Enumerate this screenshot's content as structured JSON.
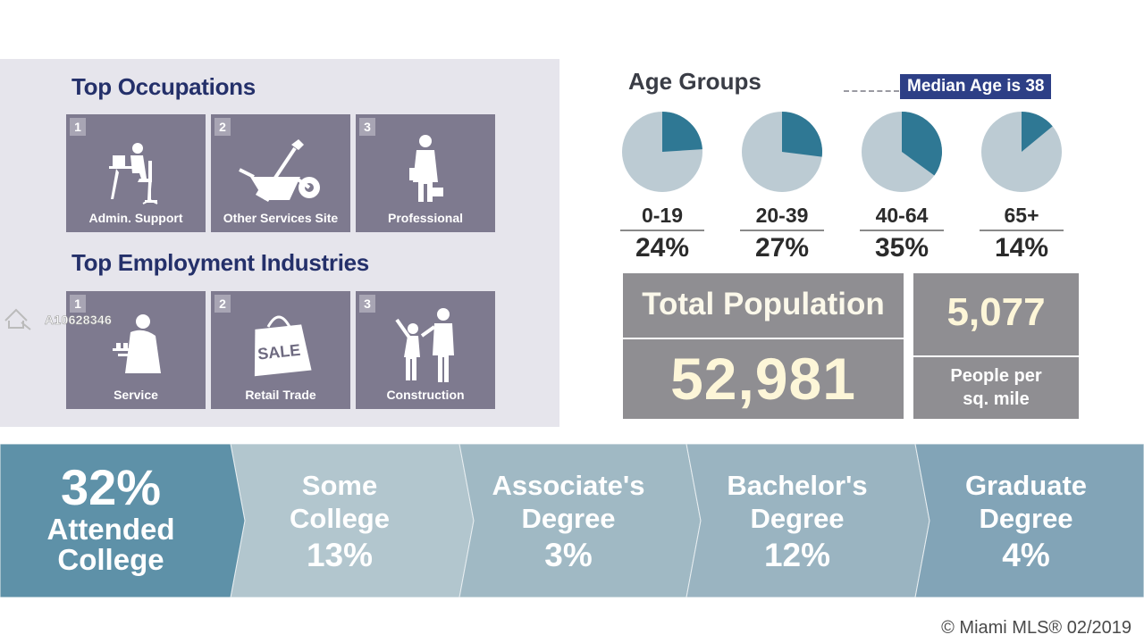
{
  "occupations": {
    "title": "Top Occupations",
    "items": [
      {
        "rank": "1",
        "label": "Admin. Support",
        "icon": "office-worker-icon"
      },
      {
        "rank": "2",
        "label": "Other Services Site",
        "icon": "wheelbarrow-shovel-icon"
      },
      {
        "rank": "3",
        "label": "Professional",
        "icon": "professional-person-icon"
      }
    ]
  },
  "industries": {
    "title": "Top Employment Industries",
    "items": [
      {
        "rank": "1",
        "label": "Service",
        "icon": "waiter-icon"
      },
      {
        "rank": "2",
        "label": "Retail Trade",
        "icon": "sale-bag-icon",
        "bag_text": "SALE"
      },
      {
        "rank": "3",
        "label": "Construction",
        "icon": "construction-workers-icon"
      }
    ]
  },
  "watermark": {
    "listing_id": "A10628346"
  },
  "chart_data": [
    {
      "type": "pie",
      "title": "Age Groups",
      "annotation": "Median Age is 38",
      "categories": [
        "0-19",
        "20-39",
        "40-64",
        "65+"
      ],
      "labels": [
        "24%",
        "27%",
        "35%",
        "14%"
      ],
      "values": [
        24,
        27,
        35,
        14
      ],
      "colors": {
        "slice": "#2f7894",
        "rest": "#bccbd3"
      }
    },
    {
      "type": "bar",
      "title": "",
      "lead": {
        "value": "32%",
        "label_line1": "Attended",
        "label_line2": "College"
      },
      "categories": [
        {
          "line1": "Some",
          "line2": "College"
        },
        {
          "line1": "Associate's",
          "line2": "Degree"
        },
        {
          "line1": "Bachelor's",
          "line2": "Degree"
        },
        {
          "line1": "Graduate",
          "line2": "Degree"
        }
      ],
      "labels": [
        "13%",
        "3%",
        "12%",
        "4%"
      ],
      "values": [
        13,
        3,
        12,
        4
      ],
      "colors": [
        "#5e91a8",
        "#b2c6ce",
        "#a0b9c4",
        "#9ab4c1",
        "#82a4b7"
      ]
    }
  ],
  "population": {
    "total_label": "Total Population",
    "total_value": "52,981",
    "density_value": "5,077",
    "density_label_line1": "People per",
    "density_label_line2": "sq. mile"
  },
  "copyright": "© Miami MLS® 02/2019"
}
